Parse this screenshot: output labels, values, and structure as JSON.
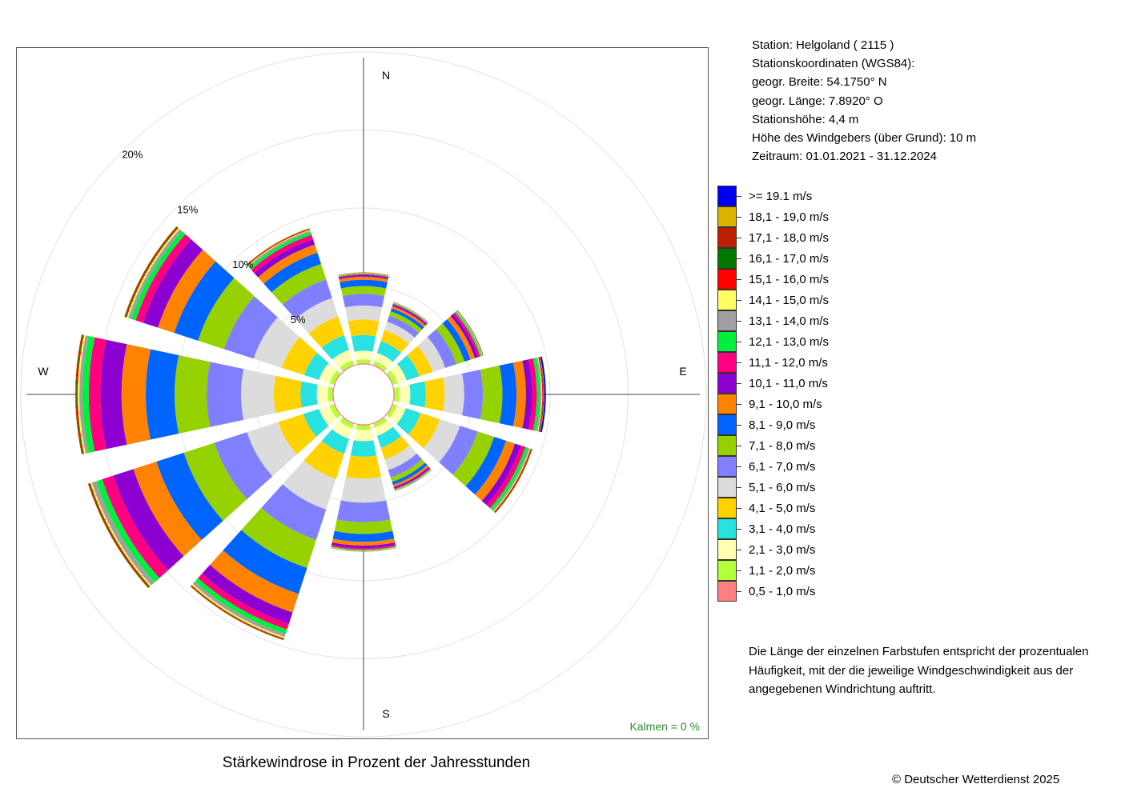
{
  "station": {
    "line1": "Station:  Helgoland  ( 2115 )",
    "line2": "Stationskoordinaten (WGS84):",
    "line3": "geogr. Breite: 54.1750° N",
    "line4": "geogr. Länge:   7.8920° O",
    "line5": "Stationshöhe: 4,4 m",
    "line6": "Höhe des Windgebers (über Grund): 10 m",
    "line7": "Zeitraum: 01.01.2021 - 31.12.2024"
  },
  "note": "Die Länge der einzelnen Farbstufen entspricht der prozentualen Häufigkeit, mit der die jeweilige Windgeschwindigkeit aus der angegebenen Windrichtung auftritt.",
  "copyright": "© Deutscher Wetterdienst  2025",
  "chart_data": {
    "type": "windrose",
    "title": "Stärkewindrose in Prozent der Jahresstunden",
    "calms": "Kalmen  =  0 %",
    "ring_labels": [
      "5%",
      "10%",
      "15%",
      "20%"
    ],
    "ring_values": [
      5,
      10,
      15,
      20
    ],
    "compass": {
      "n": "N",
      "e": "E",
      "s": "S",
      "w": "W"
    },
    "directions_deg": [
      0,
      30,
      60,
      90,
      120,
      150,
      180,
      210,
      240,
      270,
      300,
      330
    ],
    "legend": [
      {
        "label": ">= 19.1 m/s",
        "color": "#0000ee"
      },
      {
        "label": "18,1 - 19,0 m/s",
        "color": "#dcb400"
      },
      {
        "label": "17,1 - 18,0 m/s",
        "color": "#c01e00"
      },
      {
        "label": "16,1 - 17,0 m/s",
        "color": "#007800"
      },
      {
        "label": "15,1 - 16,0 m/s",
        "color": "#ff0000"
      },
      {
        "label": "14,1 - 15,0 m/s",
        "color": "#ffff64"
      },
      {
        "label": "13,1 - 14,0 m/s",
        "color": "#a0a0a0"
      },
      {
        "label": "12,1 - 13,0 m/s",
        "color": "#00f03c"
      },
      {
        "label": "11,1 - 12,0 m/s",
        "color": "#ff0080"
      },
      {
        "label": "10,1 - 11,0 m/s",
        "color": "#8c00d2"
      },
      {
        "label": "9,1 - 10,0 m/s",
        "color": "#ff8200"
      },
      {
        "label": "8,1 - 9,0 m/s",
        "color": "#0064ff"
      },
      {
        "label": "7,1 - 8,0 m/s",
        "color": "#96d200"
      },
      {
        "label": "6,1 - 7,0 m/s",
        "color": "#8080ff"
      },
      {
        "label": "5,1 - 6,0 m/s",
        "color": "#dcdcdc"
      },
      {
        "label": "4,1 - 5,0 m/s",
        "color": "#ffd200"
      },
      {
        "label": "3,1 - 4,0 m/s",
        "color": "#28e1e1"
      },
      {
        "label": "2,1 - 3,0 m/s",
        "color": "#ffffb4"
      },
      {
        "label": "1,1 - 2,0 m/s",
        "color": "#b4ff3c"
      },
      {
        "label": "0,5 - 1,0 m/s",
        "color": "#ff8080"
      }
    ],
    "series": [
      {
        "direction": 0,
        "values": [
          0.05,
          0.25,
          0.55,
          1.0,
          1.0,
          0.9,
          0.75,
          0.5,
          0.4,
          0.2,
          0.1,
          0.05,
          0.05,
          0.02,
          0.02,
          0.01,
          0.01,
          0.01,
          0.01,
          0.0
        ]
      },
      {
        "direction": 30,
        "values": [
          0.05,
          0.25,
          0.55,
          0.8,
          0.75,
          0.55,
          0.4,
          0.3,
          0.2,
          0.15,
          0.1,
          0.05,
          0.05,
          0.02,
          0.02,
          0.01,
          0.01,
          0.01,
          0.0,
          0.0
        ]
      },
      {
        "direction": 60,
        "values": [
          0.05,
          0.3,
          0.6,
          0.85,
          0.9,
          0.85,
          0.75,
          0.55,
          0.4,
          0.3,
          0.2,
          0.15,
          0.1,
          0.05,
          0.03,
          0.02,
          0.02,
          0.01,
          0.01,
          0.0
        ]
      },
      {
        "direction": 90,
        "values": [
          0.05,
          0.3,
          0.7,
          1.0,
          1.2,
          1.25,
          1.2,
          1.25,
          0.9,
          0.6,
          0.4,
          0.3,
          0.2,
          0.1,
          0.05,
          0.05,
          0.03,
          0.03,
          0.02,
          0.1
        ]
      },
      {
        "direction": 120,
        "values": [
          0.05,
          0.25,
          0.6,
          1.0,
          1.3,
          1.35,
          1.2,
          1.1,
          0.8,
          0.6,
          0.4,
          0.3,
          0.2,
          0.1,
          0.05,
          0.05,
          0.03,
          0.03,
          0.02,
          0.0
        ]
      },
      {
        "direction": 150,
        "values": [
          0.05,
          0.25,
          0.55,
          0.8,
          0.8,
          0.7,
          0.5,
          0.3,
          0.2,
          0.15,
          0.1,
          0.05,
          0.05,
          0.02,
          0.02,
          0.01,
          0.01,
          0.01,
          0.0,
          0.0
        ]
      },
      {
        "direction": 180,
        "values": [
          0.05,
          0.3,
          0.7,
          1.0,
          1.4,
          1.55,
          1.25,
          0.75,
          0.5,
          0.25,
          0.15,
          0.1,
          0.05,
          0.02,
          0.02,
          0.01,
          0.01,
          0.01,
          0.01,
          0.0
        ]
      },
      {
        "direction": 210,
        "values": [
          0.05,
          0.3,
          0.7,
          1.0,
          1.7,
          2.05,
          2.05,
          1.9,
          1.75,
          1.25,
          0.75,
          0.4,
          0.3,
          0.2,
          0.1,
          0.05,
          0.03,
          0.03,
          0.02,
          0.0
        ]
      },
      {
        "direction": 240,
        "values": [
          0.05,
          0.3,
          0.7,
          1.05,
          1.7,
          2.1,
          2.2,
          2.05,
          1.85,
          1.55,
          1.35,
          0.75,
          0.4,
          0.3,
          0.1,
          0.05,
          0.05,
          0.05,
          0.02,
          0.0
        ]
      },
      {
        "direction": 270,
        "values": [
          0.05,
          0.3,
          0.7,
          1.05,
          1.7,
          2.1,
          2.2,
          2.05,
          1.85,
          1.55,
          1.35,
          0.75,
          0.4,
          0.2,
          0.1,
          0.05,
          0.05,
          0.05,
          0.02,
          0.0
        ]
      },
      {
        "direction": 300,
        "values": [
          0.05,
          0.3,
          0.7,
          1.0,
          1.5,
          1.9,
          2.0,
          1.75,
          1.6,
          1.1,
          1.0,
          0.5,
          0.3,
          0.2,
          0.1,
          0.05,
          0.05,
          0.05,
          0.02,
          0.0
        ]
      },
      {
        "direction": 330,
        "values": [
          0.05,
          0.3,
          0.7,
          1.0,
          1.25,
          1.25,
          1.25,
          1.05,
          0.75,
          0.55,
          0.35,
          0.3,
          0.2,
          0.1,
          0.05,
          0.05,
          0.02,
          0.02,
          0.02,
          0.0
        ]
      }
    ]
  }
}
